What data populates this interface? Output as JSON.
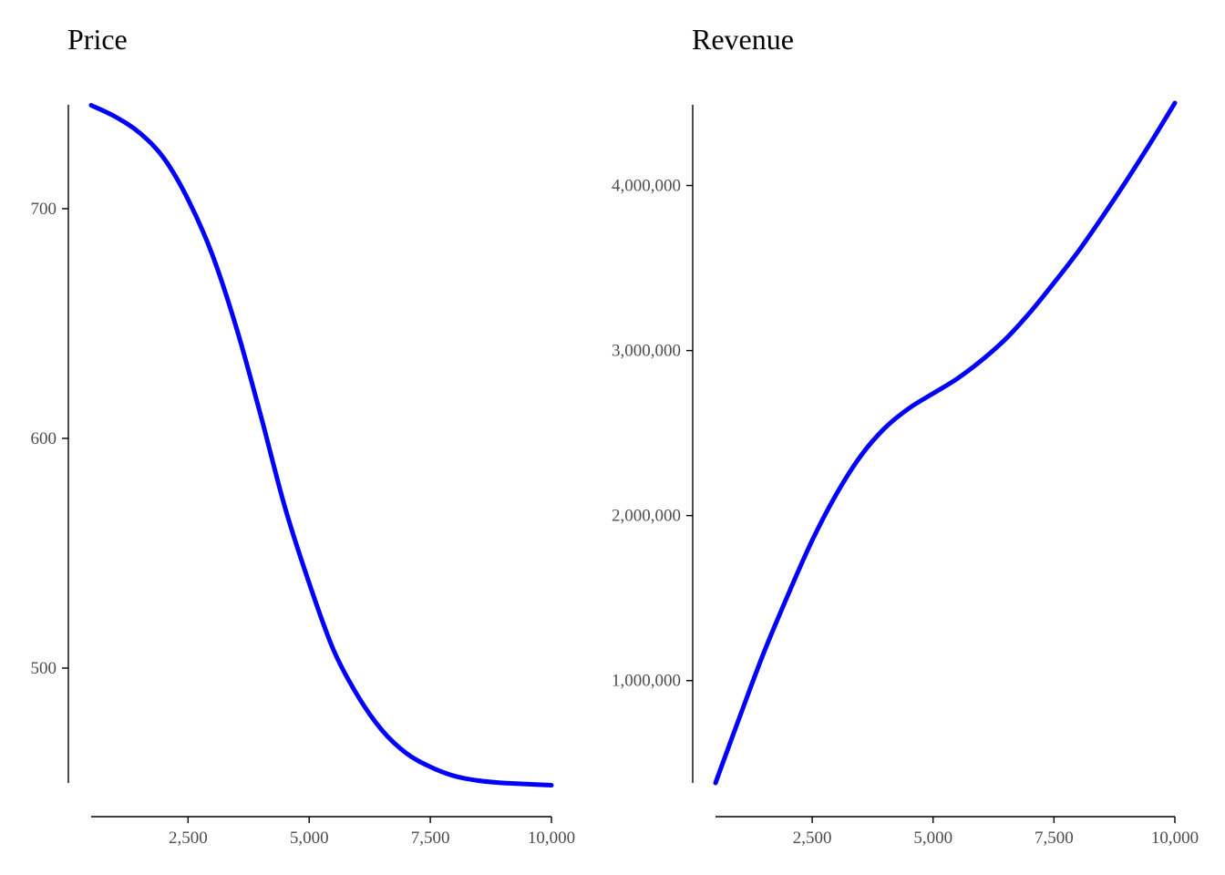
{
  "chart_data": [
    {
      "type": "line",
      "title": "Price",
      "xlabel": "",
      "ylabel": "",
      "xlim": [
        500,
        10000
      ],
      "ylim": [
        450,
        746
      ],
      "xticks": [
        2500,
        5000,
        7500,
        10000
      ],
      "xtick_labels": [
        "2,500",
        "5,000",
        "7,500",
        "10,000"
      ],
      "yticks": [
        500,
        600,
        700
      ],
      "ytick_labels": [
        "500",
        "600",
        "700"
      ],
      "grid": false,
      "color": "#0000ff",
      "series": [
        {
          "x": [
            500,
            1000,
            1500,
            2000,
            2500,
            3000,
            3500,
            4000,
            4500,
            5000,
            5500,
            6000,
            6500,
            7000,
            7500,
            8000,
            8500,
            9000,
            9500,
            10000
          ],
          "y": [
            745,
            740,
            733,
            722,
            704,
            680,
            648,
            610,
            570,
            537,
            508,
            488,
            473,
            463,
            457,
            453,
            451,
            450,
            449.5,
            449
          ]
        }
      ]
    },
    {
      "type": "line",
      "title": "Revenue",
      "xlabel": "",
      "ylabel": "",
      "xlim": [
        500,
        10000
      ],
      "ylim": [
        380000,
        4500000
      ],
      "xticks": [
        2500,
        5000,
        7500,
        10000
      ],
      "xtick_labels": [
        "2,500",
        "5,000",
        "7,500",
        "10,000"
      ],
      "yticks": [
        1000000,
        2000000,
        3000000,
        4000000
      ],
      "ytick_labels": [
        "1,000,000",
        "2,000,000",
        "3,000,000",
        "4,000,000"
      ],
      "grid": false,
      "color": "#0000ff",
      "series": [
        {
          "x": [
            500,
            1000,
            1500,
            2000,
            2500,
            3000,
            3500,
            4000,
            4500,
            5000,
            5500,
            6000,
            6500,
            7000,
            7500,
            8000,
            8500,
            9000,
            9500,
            10000
          ],
          "y": [
            380000,
            780000,
            1170000,
            1520000,
            1850000,
            2130000,
            2360000,
            2530000,
            2650000,
            2740000,
            2830000,
            2940000,
            3070000,
            3230000,
            3410000,
            3600000,
            3810000,
            4030000,
            4260000,
            4500000
          ]
        }
      ]
    }
  ]
}
